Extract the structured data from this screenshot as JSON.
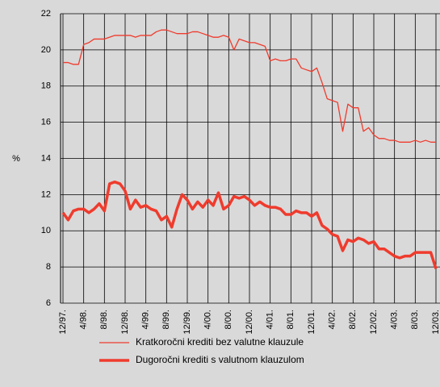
{
  "chart_data": {
    "type": "line",
    "ylabel": "%",
    "categories": [
      "12/97.",
      null,
      null,
      null,
      "4/98.",
      null,
      null,
      null,
      "8/98.",
      null,
      null,
      null,
      "12/98.",
      null,
      null,
      null,
      "4/99.",
      null,
      null,
      null,
      "8/99.",
      null,
      null,
      null,
      "12/99.",
      null,
      null,
      null,
      "4/00.",
      null,
      null,
      null,
      "8/00.",
      null,
      null,
      null,
      "12/00.",
      null,
      null,
      null,
      "4/01.",
      null,
      null,
      null,
      "8/01.",
      null,
      null,
      null,
      "12/01.",
      null,
      null,
      null,
      "4/02.",
      null,
      null,
      null,
      "8/02.",
      null,
      null,
      null,
      "12/02.",
      null,
      null,
      null,
      "4/03.",
      null,
      null,
      null,
      "8/03.",
      null,
      null,
      null,
      "12/03."
    ],
    "series": [
      {
        "name": "Kratkoročni krediti bez valutne klauzule",
        "color": "#ef3b2d",
        "line_width": 1.3,
        "values": [
          19.3,
          19.3,
          19.2,
          19.2,
          20.3,
          20.4,
          20.6,
          20.6,
          20.6,
          20.7,
          20.8,
          20.8,
          20.8,
          20.8,
          20.7,
          20.8,
          20.8,
          20.8,
          21.0,
          21.1,
          21.1,
          21.0,
          20.9,
          20.9,
          20.9,
          21.0,
          21.0,
          20.9,
          20.8,
          20.7,
          20.7,
          20.8,
          20.7,
          20.0,
          20.6,
          20.5,
          20.4,
          20.4,
          20.3,
          20.2,
          19.4,
          19.5,
          19.4,
          19.4,
          19.5,
          19.5,
          19.0,
          18.9,
          18.8,
          19.0,
          18.2,
          17.3,
          17.2,
          17.1,
          15.5,
          17.0,
          16.8,
          16.8,
          15.5,
          15.7,
          15.3,
          15.1,
          15.1,
          15.0,
          15.0,
          14.9,
          14.9,
          14.9,
          15.0,
          14.9,
          15.0,
          14.9,
          14.9
        ]
      },
      {
        "name": "Dugoročni krediti s valutnom klauzulom",
        "color": "#ef3b2d",
        "line_width": 3.5,
        "values": [
          11.0,
          10.6,
          11.1,
          11.2,
          11.2,
          11.0,
          11.2,
          11.5,
          11.1,
          12.6,
          12.7,
          12.6,
          12.2,
          11.2,
          11.7,
          11.3,
          11.4,
          11.2,
          11.1,
          10.6,
          10.8,
          10.2,
          11.2,
          12.0,
          11.7,
          11.2,
          11.6,
          11.3,
          11.7,
          11.4,
          12.1,
          11.2,
          11.4,
          11.9,
          11.8,
          11.9,
          11.7,
          11.4,
          11.6,
          11.4,
          11.3,
          11.3,
          11.2,
          10.9,
          10.9,
          11.1,
          11.0,
          11.0,
          10.8,
          11.0,
          10.3,
          10.1,
          9.8,
          9.7,
          8.9,
          9.5,
          9.4,
          9.6,
          9.5,
          9.3,
          9.4,
          9.0,
          9.0,
          8.8,
          8.6,
          8.5,
          8.6,
          8.6,
          8.8,
          8.8,
          8.8,
          8.8,
          7.9
        ]
      }
    ],
    "ylim": [
      6,
      22
    ],
    "yticks": [
      6,
      8,
      10,
      12,
      14,
      16,
      18,
      20,
      22
    ],
    "grid": true
  }
}
